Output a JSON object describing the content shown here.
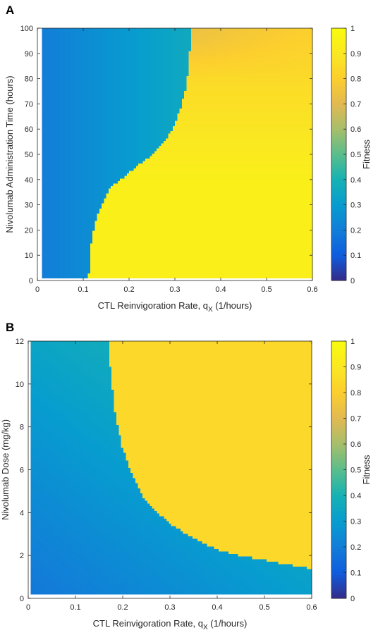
{
  "chart_data": [
    {
      "panel_label": "A",
      "type": "heatmap",
      "xlabel": "CTL Reinvigoration Rate, q",
      "xlabel_sub": "X",
      "xlabel_unit": " (1/hours)",
      "ylabel": "Nivolumab Administration Time (hours)",
      "xlim": [
        0,
        0.6
      ],
      "ylim": [
        0,
        100
      ],
      "x_data_range": [
        0.01,
        0.6
      ],
      "y_data_range": [
        1,
        100
      ],
      "xticks": [
        "0",
        "0.1",
        "0.2",
        "0.3",
        "0.4",
        "0.5",
        "0.6"
      ],
      "yticks": [
        "0",
        "10",
        "20",
        "30",
        "40",
        "50",
        "60",
        "70",
        "80",
        "90",
        "100"
      ],
      "colorbar_label": "Fitness",
      "colorbar_ticks": [
        "0",
        "0.1",
        "0.2",
        "0.3",
        "0.4",
        "0.5",
        "0.6",
        "0.7",
        "0.8",
        "0.9",
        "1"
      ],
      "colorbar_range": [
        0,
        1
      ],
      "colormap": "parula",
      "boundary": {
        "y": [
          1,
          12,
          18,
          22,
          25,
          30,
          35,
          38,
          40,
          45,
          50,
          55,
          60,
          65,
          70,
          75,
          80,
          85,
          90,
          95,
          100
        ],
        "x": [
          0.112,
          0.115,
          0.12,
          0.125,
          0.13,
          0.14,
          0.152,
          0.165,
          0.18,
          0.215,
          0.25,
          0.275,
          0.295,
          0.305,
          0.315,
          0.322,
          0.327,
          0.33,
          0.332,
          0.334,
          0.336
        ]
      },
      "fitness": {
        "low_region_x_at_0.01": 0.2,
        "low_region_x_at_0.33": 0.36,
        "high_region_at_bottom": 0.94,
        "high_region_at_top": 0.8,
        "top_right_after_boundary": 0.74
      }
    },
    {
      "panel_label": "B",
      "type": "heatmap",
      "xlabel": "CTL Reinvigoration Rate, q",
      "xlabel_sub": "X",
      "xlabel_unit": " (1/hours)",
      "ylabel": "Nivolumab Dose (mg/kg)",
      "xlim": [
        0,
        0.6
      ],
      "ylim": [
        0,
        12
      ],
      "x_data_range": [
        0.005,
        0.6
      ],
      "y_data_range": [
        0.2,
        12
      ],
      "xticks": [
        "0",
        "0.1",
        "0.2",
        "0.3",
        "0.4",
        "0.5",
        "0.6"
      ],
      "yticks": [
        "0",
        "2",
        "4",
        "6",
        "8",
        "10",
        "12"
      ],
      "colorbar_label": "Fitness",
      "colorbar_ticks": [
        "0",
        "0.1",
        "0.2",
        "0.3",
        "0.4",
        "0.5",
        "0.6",
        "0.7",
        "0.8",
        "0.9",
        "1"
      ],
      "colorbar_range": [
        0,
        1
      ],
      "colormap": "parula",
      "boundary": {
        "x": [
          0.17,
          0.175,
          0.185,
          0.2,
          0.22,
          0.25,
          0.3,
          0.35,
          0.4,
          0.45,
          0.5,
          0.55,
          0.6
        ],
        "y": [
          12,
          10.5,
          8.5,
          7.0,
          5.8,
          4.5,
          3.5,
          2.8,
          2.3,
          2.0,
          1.8,
          1.6,
          1.4
        ]
      },
      "fitness": {
        "low_region_min": 0.18,
        "low_region_max": 0.4,
        "high_region": 0.84
      }
    }
  ]
}
